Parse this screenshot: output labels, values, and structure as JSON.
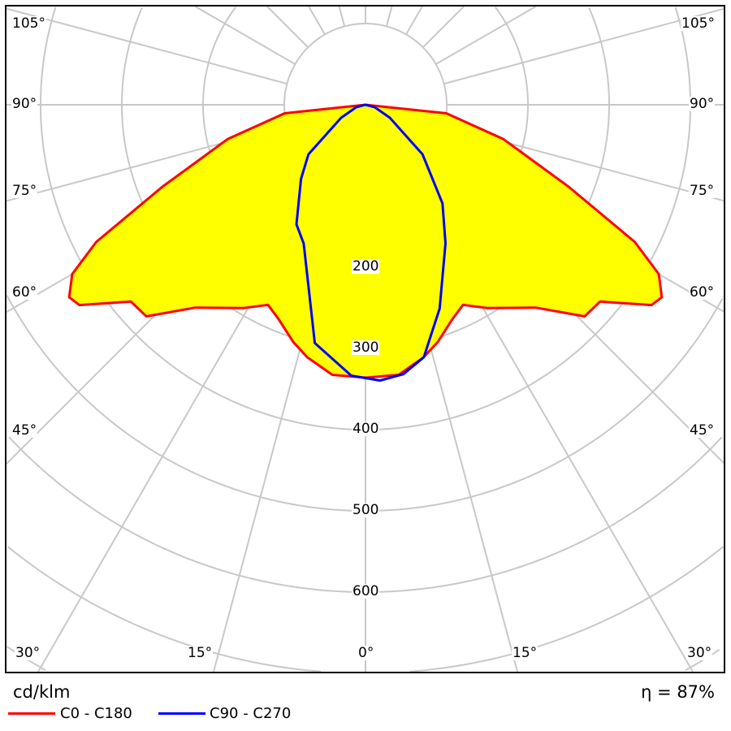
{
  "chart_data": {
    "type": "polar",
    "unit_label": "cd/klm",
    "efficiency": "η = 87%",
    "radial_ticks": [
      "200",
      "300",
      "400",
      "500",
      "600"
    ],
    "radial_tick_values": [
      200,
      300,
      400,
      500,
      600
    ],
    "angle_labels": [
      "105°",
      "90°",
      "75°",
      "60°",
      "45°",
      "30°",
      "15°",
      "0°",
      "15°",
      "30°"
    ],
    "series": [
      {
        "name": "C0 - C180",
        "color": "#ff0000",
        "fill": "#ffff00",
        "angles": [
          -90,
          -84,
          -76,
          -68,
          -63,
          -60,
          -57,
          -55,
          -50,
          -46,
          -40,
          -31,
          -26,
          -22,
          -17,
          -13,
          -7,
          0,
          7,
          13,
          17,
          22,
          26,
          31,
          40,
          46,
          50,
          55,
          57,
          60,
          63,
          68,
          76,
          84,
          90
        ],
        "values": [
          0,
          100,
          175,
          270,
          372,
          417,
          435,
          430,
          377,
          375,
          326,
          292,
          274,
          285,
          305,
          319,
          335,
          336,
          335,
          319,
          305,
          285,
          274,
          292,
          326,
          375,
          377,
          430,
          435,
          417,
          372,
          270,
          175,
          100,
          0
        ]
      },
      {
        "name": "C90 - C270",
        "color": "#0000ff",
        "angles": [
          -90,
          -75,
          -62,
          -49,
          -41,
          -30,
          -24,
          -12,
          -3,
          3,
          8,
          13,
          20,
          30,
          38,
          49,
          62,
          75,
          90
        ],
        "values": [
          0,
          12,
          34,
          93,
          121,
          170,
          187,
          300,
          334,
          340,
          335,
          319,
          267,
          197,
          154,
          93,
          34,
          12,
          0
        ]
      }
    ]
  }
}
